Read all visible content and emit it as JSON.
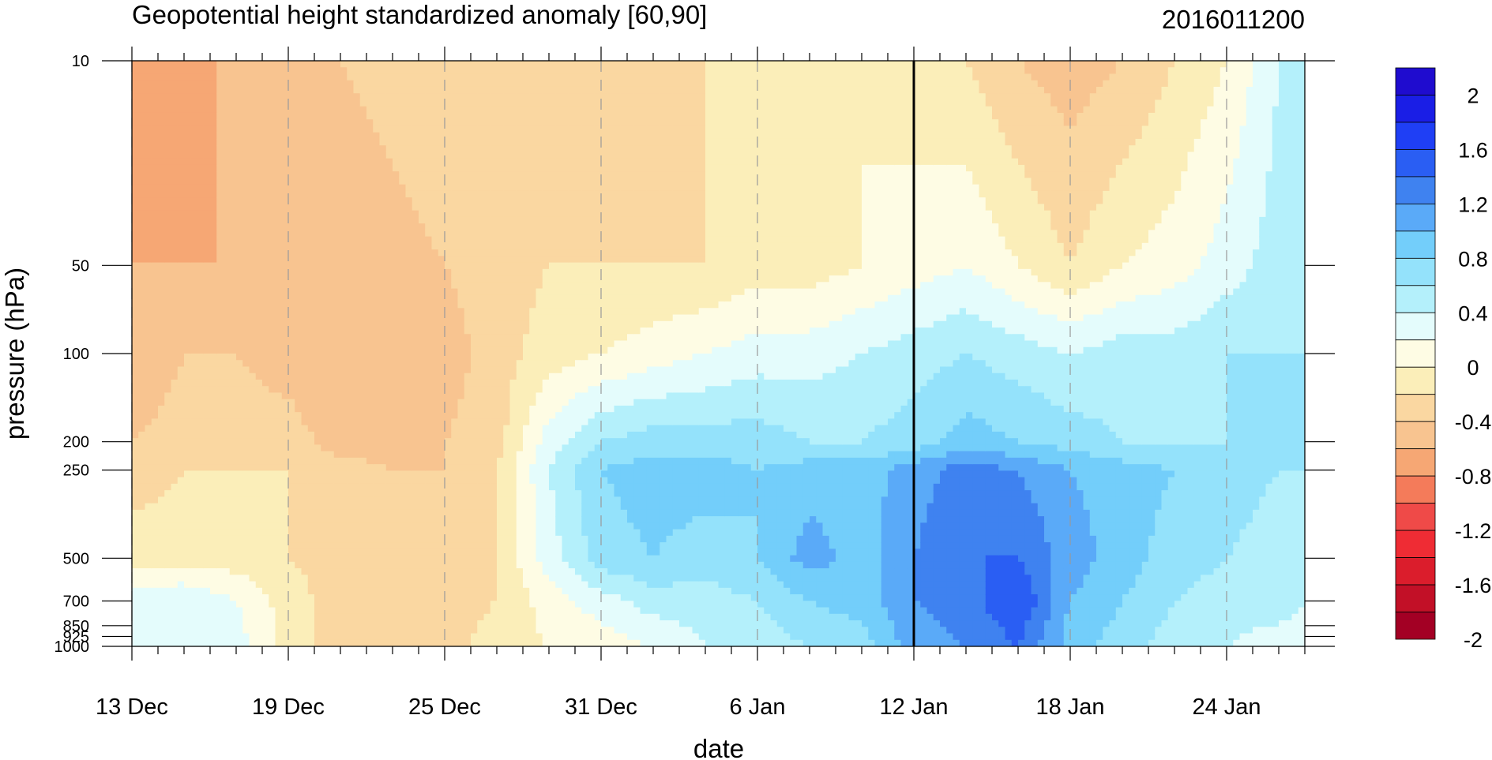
{
  "chart_data": {
    "type": "heatmap",
    "title": "Geopotential height standardized anomaly [60,90]",
    "init_time": "2016011200",
    "xlabel": "date",
    "ylabel": "pressure (hPa)",
    "x_ticks": [
      {
        "label": "13 Dec",
        "day": 0
      },
      {
        "label": "19 Dec",
        "day": 6
      },
      {
        "label": "25 Dec",
        "day": 12
      },
      {
        "label": "31 Dec",
        "day": 18
      },
      {
        "label": "6 Jan",
        "day": 24
      },
      {
        "label": "12 Jan",
        "day": 30
      },
      {
        "label": "18 Jan",
        "day": 36
      },
      {
        "label": "24 Jan",
        "day": 42
      }
    ],
    "x_range_days": [
      0,
      45
    ],
    "current_day": 30,
    "y_ticks": [
      {
        "label": "10",
        "p": 10
      },
      {
        "label": "50",
        "p": 50
      },
      {
        "label": "100",
        "p": 100
      },
      {
        "label": "200",
        "p": 200
      },
      {
        "label": "250",
        "p": 250
      },
      {
        "label": "500",
        "p": 500
      },
      {
        "label": "700",
        "p": 700
      },
      {
        "label": "850",
        "p": 850
      },
      {
        "label": "925",
        "p": 925
      },
      {
        "label": "1000",
        "p": 1000
      }
    ],
    "y_scale": "log",
    "y_range": [
      10,
      1000
    ],
    "colorbar": {
      "levels": [
        -2.2,
        -2,
        -1.8,
        -1.6,
        -1.4,
        -1.2,
        -1,
        -0.8,
        -0.6,
        -0.4,
        -0.2,
        0,
        0.2,
        0.4,
        0.6,
        0.8,
        1,
        1.2,
        1.4,
        1.6,
        1.8,
        2,
        2.2
      ],
      "labels": [
        "2",
        "1.6",
        "1.2",
        "0.8",
        "0.4",
        "0",
        "-0.4",
        "-0.8",
        "-1.2",
        "-1.6",
        "-2"
      ],
      "label_values": [
        2,
        1.6,
        1.2,
        0.8,
        0.4,
        0,
        -0.4,
        -0.8,
        -1.2,
        -1.6,
        -2
      ],
      "colors": [
        "#1f0ccf",
        "#1a1ee6",
        "#1f3ff5",
        "#2a5ef3",
        "#3f82f0",
        "#5aaaf8",
        "#73cefa",
        "#94e2fb",
        "#b4f0fb",
        "#e4fcfc",
        "#fefce4",
        "#fbeeb9",
        "#fad7a1",
        "#f8c490",
        "#f6a774",
        "#f47b5a",
        "#ef4a48",
        "#ef2c34",
        "#db1d2c",
        "#c21027",
        "#a30024"
      ]
    },
    "grid": "dashed verticals at date ticks",
    "points": [
      {
        "day": 0,
        "p": [
          -1.0,
          -0.8,
          -0.8,
          -0.6,
          -0.5,
          -0.3,
          0.1,
          0.2
        ]
      },
      {
        "day": 2,
        "p": [
          -1.0,
          -0.8,
          -0.6,
          -0.5,
          -0.4,
          -0.3,
          0.2,
          0.2
        ]
      },
      {
        "day": 4,
        "p": [
          -0.7,
          -0.8,
          -0.6,
          -0.5,
          -0.4,
          -0.3,
          0.0,
          0.1
        ]
      },
      {
        "day": 6,
        "p": [
          -0.6,
          -0.8,
          -0.7,
          -0.5,
          -0.4,
          -0.4,
          -0.3,
          -0.3
        ]
      },
      {
        "day": 8,
        "p": [
          -0.6,
          -0.8,
          -0.8,
          -0.7,
          -0.5,
          -0.5,
          -0.5,
          -0.5
        ]
      },
      {
        "day": 10,
        "p": [
          -0.5,
          -0.7,
          -0.8,
          -0.7,
          -0.6,
          -0.6,
          -0.6,
          -0.6
        ]
      },
      {
        "day": 12,
        "p": [
          -0.4,
          -0.6,
          -0.7,
          -0.6,
          -0.6,
          -0.6,
          -0.5,
          -0.5
        ]
      },
      {
        "day": 14,
        "p": [
          -0.4,
          -0.5,
          -0.5,
          -0.5,
          -0.4,
          -0.4,
          -0.4,
          -0.3
        ]
      },
      {
        "day": 16,
        "p": [
          -0.5,
          -0.4,
          -0.3,
          0.1,
          0.2,
          0.1,
          -0.1,
          -0.2
        ]
      },
      {
        "day": 18,
        "p": [
          -0.6,
          -0.4,
          -0.2,
          0.4,
          0.6,
          0.5,
          0.1,
          -0.1
        ]
      },
      {
        "day": 20,
        "p": [
          -0.6,
          -0.4,
          -0.1,
          0.5,
          0.7,
          0.6,
          0.3,
          0.0
        ]
      },
      {
        "day": 22,
        "p": [
          -0.4,
          -0.4,
          0.0,
          0.5,
          0.7,
          0.5,
          0.3,
          0.2
        ]
      },
      {
        "day": 24,
        "p": [
          -0.2,
          -0.3,
          0.1,
          0.5,
          0.6,
          0.6,
          0.4,
          0.3
        ]
      },
      {
        "day": 26,
        "p": [
          -0.2,
          -0.3,
          0.1,
          0.4,
          0.7,
          0.9,
          0.6,
          0.4
        ]
      },
      {
        "day": 28,
        "p": [
          -0.2,
          -0.2,
          0.2,
          0.4,
          0.7,
          0.7,
          0.7,
          0.5
        ]
      },
      {
        "day": 30,
        "p": [
          -0.3,
          -0.1,
          0.3,
          0.5,
          0.9,
          1.0,
          1.0,
          0.9
        ]
      },
      {
        "day": 32,
        "p": [
          -0.4,
          0.0,
          0.4,
          0.7,
          1.1,
          1.2,
          1.1,
          1.0
        ]
      },
      {
        "day": 34,
        "p": [
          -0.6,
          -0.2,
          0.3,
          0.6,
          1.0,
          1.2,
          1.4,
          1.2
        ]
      },
      {
        "day": 36,
        "p": [
          -0.7,
          -0.4,
          0.2,
          0.5,
          0.8,
          0.9,
          0.8,
          0.7
        ]
      },
      {
        "day": 38,
        "p": [
          -0.6,
          -0.2,
          0.3,
          0.4,
          0.7,
          0.7,
          0.6,
          0.5
        ]
      },
      {
        "day": 40,
        "p": [
          -0.4,
          -0.1,
          0.3,
          0.4,
          0.6,
          0.5,
          0.4,
          0.3
        ]
      },
      {
        "day": 42,
        "p": [
          -0.2,
          0.1,
          0.4,
          0.4,
          0.5,
          0.4,
          0.3,
          0.2
        ]
      },
      {
        "day": 44,
        "p": [
          0.2,
          0.3,
          0.4,
          0.4,
          0.4,
          0.3,
          0.3,
          0.1
        ]
      },
      {
        "day": 45,
        "p": [
          0.3,
          0.4,
          0.4,
          0.4,
          0.4,
          0.3,
          0.2,
          0.1
        ]
      }
    ],
    "point_levels": [
      10,
      50,
      100,
      200,
      250,
      500,
      700,
      1000
    ]
  }
}
